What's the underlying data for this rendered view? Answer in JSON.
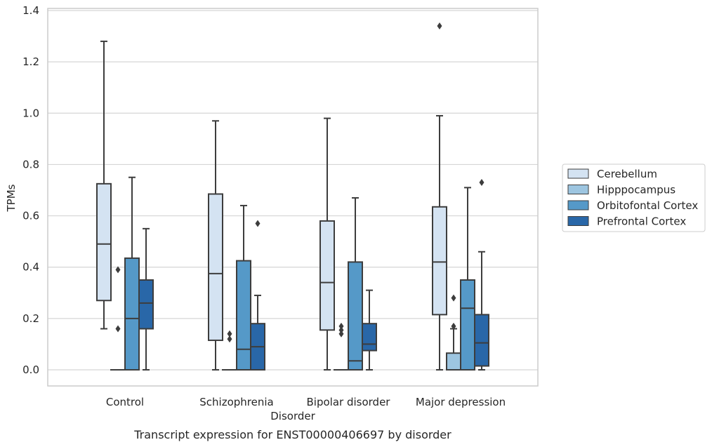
{
  "chart_data": {
    "type": "box",
    "caption": "Transcript expression for ENST00000406697 by disorder",
    "xlabel": "Disorder",
    "ylabel": "TPMs",
    "ylim": [
      -0.065,
      1.41
    ],
    "yticks": [
      "0.0",
      "0.2",
      "0.4",
      "0.6",
      "0.8",
      "1.0",
      "1.2",
      "1.4"
    ],
    "grid": true,
    "legend_position": "right",
    "categories": [
      "Control",
      "Schizophrenia",
      "Bipolar disorder",
      "Major depression"
    ],
    "series": [
      {
        "name": "Cerebellum",
        "color": "#d4e3f2",
        "boxes": [
          {
            "whislo": 0.16,
            "q1": 0.27,
            "med": 0.49,
            "q3": 0.725,
            "whishi": 1.28,
            "fliers": []
          },
          {
            "whislo": 0.0,
            "q1": 0.115,
            "med": 0.375,
            "q3": 0.685,
            "whishi": 0.97,
            "fliers": []
          },
          {
            "whislo": 0.0,
            "q1": 0.155,
            "med": 0.34,
            "q3": 0.58,
            "whishi": 0.98,
            "fliers": []
          },
          {
            "whislo": 0.0,
            "q1": 0.215,
            "med": 0.42,
            "q3": 0.635,
            "whishi": 0.99,
            "fliers": [
              1.34
            ]
          }
        ]
      },
      {
        "name": "Hipppocampus",
        "color": "#9dc5e0",
        "boxes": [
          {
            "whislo": 0.0,
            "q1": 0.0,
            "med": 0.0,
            "q3": 0.0,
            "whishi": 0.0,
            "fliers": [
              0.39,
              0.16
            ]
          },
          {
            "whislo": 0.0,
            "q1": 0.0,
            "med": 0.0,
            "q3": 0.0,
            "whishi": 0.0,
            "fliers": [
              0.14,
              0.12
            ]
          },
          {
            "whislo": 0.0,
            "q1": 0.0,
            "med": 0.0,
            "q3": 0.0,
            "whishi": 0.0,
            "fliers": [
              0.17,
              0.155,
              0.14
            ]
          },
          {
            "whislo": 0.0,
            "q1": 0.0,
            "med": 0.0,
            "q3": 0.065,
            "whishi": 0.16,
            "fliers": [
              0.28,
              0.17
            ]
          }
        ]
      },
      {
        "name": "Orbitofontal Cortex",
        "color": "#5599c8",
        "boxes": [
          {
            "whislo": 0.0,
            "q1": 0.0,
            "med": 0.2,
            "q3": 0.435,
            "whishi": 0.75,
            "fliers": []
          },
          {
            "whislo": 0.0,
            "q1": 0.0,
            "med": 0.08,
            "q3": 0.425,
            "whishi": 0.64,
            "fliers": []
          },
          {
            "whislo": 0.0,
            "q1": 0.0,
            "med": 0.035,
            "q3": 0.42,
            "whishi": 0.67,
            "fliers": []
          },
          {
            "whislo": 0.0,
            "q1": 0.0,
            "med": 0.24,
            "q3": 0.35,
            "whishi": 0.71,
            "fliers": []
          }
        ]
      },
      {
        "name": "Prefrontal Cortex",
        "color": "#2967a8",
        "boxes": [
          {
            "whislo": 0.0,
            "q1": 0.16,
            "med": 0.26,
            "q3": 0.35,
            "whishi": 0.55,
            "fliers": []
          },
          {
            "whislo": 0.0,
            "q1": 0.0,
            "med": 0.09,
            "q3": 0.18,
            "whishi": 0.29,
            "fliers": [
              0.57
            ]
          },
          {
            "whislo": 0.0,
            "q1": 0.075,
            "med": 0.1,
            "q3": 0.18,
            "whishi": 0.31,
            "fliers": []
          },
          {
            "whislo": 0.0,
            "q1": 0.015,
            "med": 0.105,
            "q3": 0.215,
            "whishi": 0.46,
            "fliers": [
              0.73
            ]
          }
        ]
      }
    ]
  }
}
